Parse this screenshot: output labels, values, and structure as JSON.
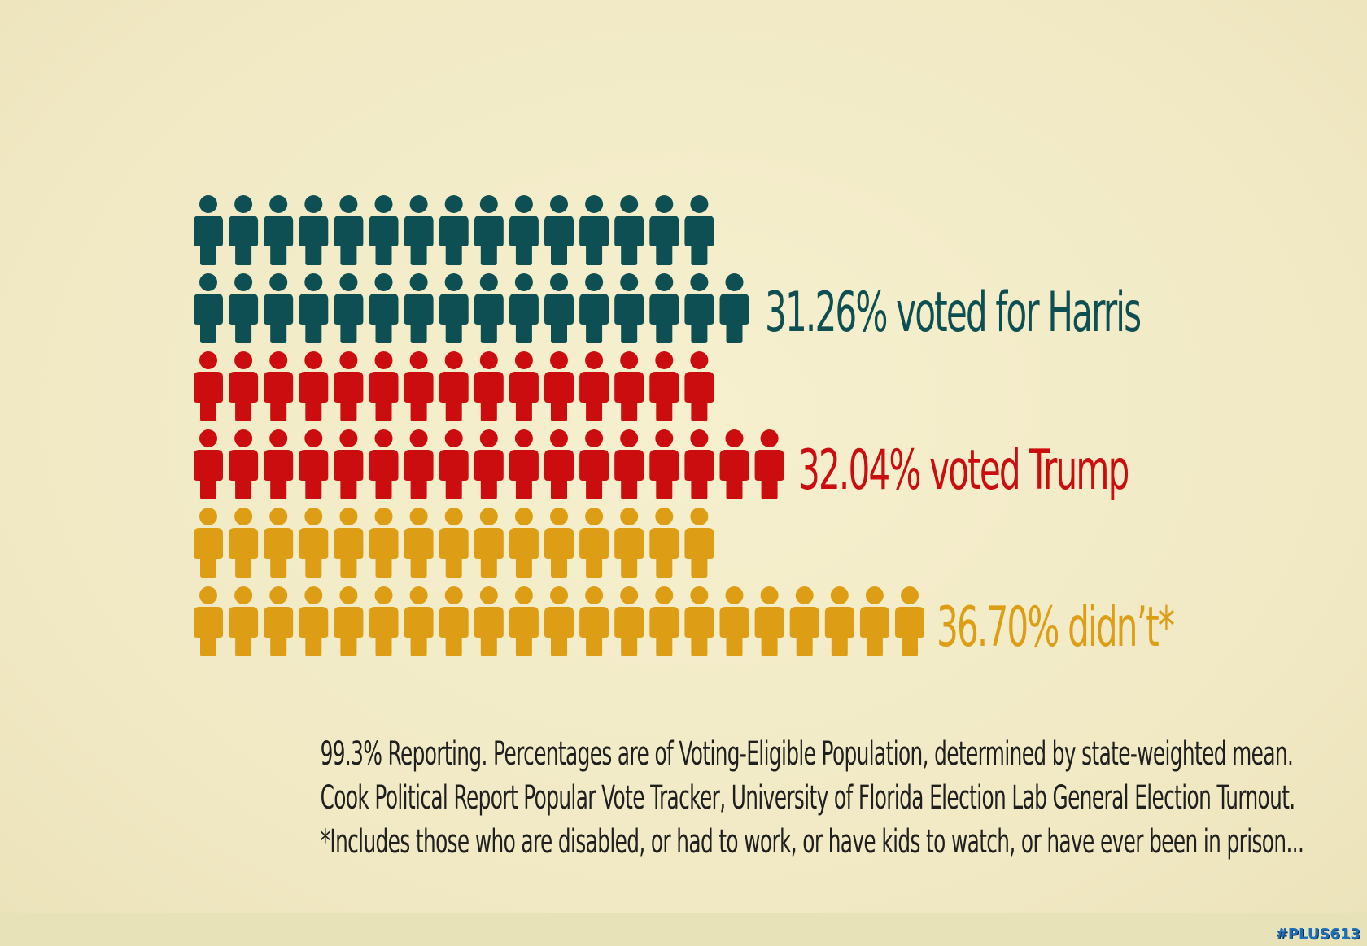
{
  "chart_data": {
    "type": "pictogram",
    "series": [
      {
        "name": "31.26% voted for Harris",
        "label": "31.26% voted for Harris",
        "value": 31.26,
        "icons": 31,
        "color": "#0e4f53"
      },
      {
        "name": "32.04% voted Trump",
        "label": "32.04% voted Trump",
        "value": 32.04,
        "icons": 32,
        "color": "#cc0d0f"
      },
      {
        "name": "36.70% didn't*",
        "label": "36.70% didn’t*",
        "value": 36.7,
        "icons": 36,
        "color": "#dd9e16"
      }
    ],
    "unit": "%"
  },
  "notes": [
    "99.3% Reporting. Percentages are of Voting-Eligible Population, determined by state-weighted mean.",
    "Cook Political Report Popular Vote Tracker, University of Florida Election Lab General Election Turnout.",
    "*Includes those who are disabled, or had to work, or have kids to watch, or have ever been in prison..."
  ],
  "watermark": "#PLUS613"
}
